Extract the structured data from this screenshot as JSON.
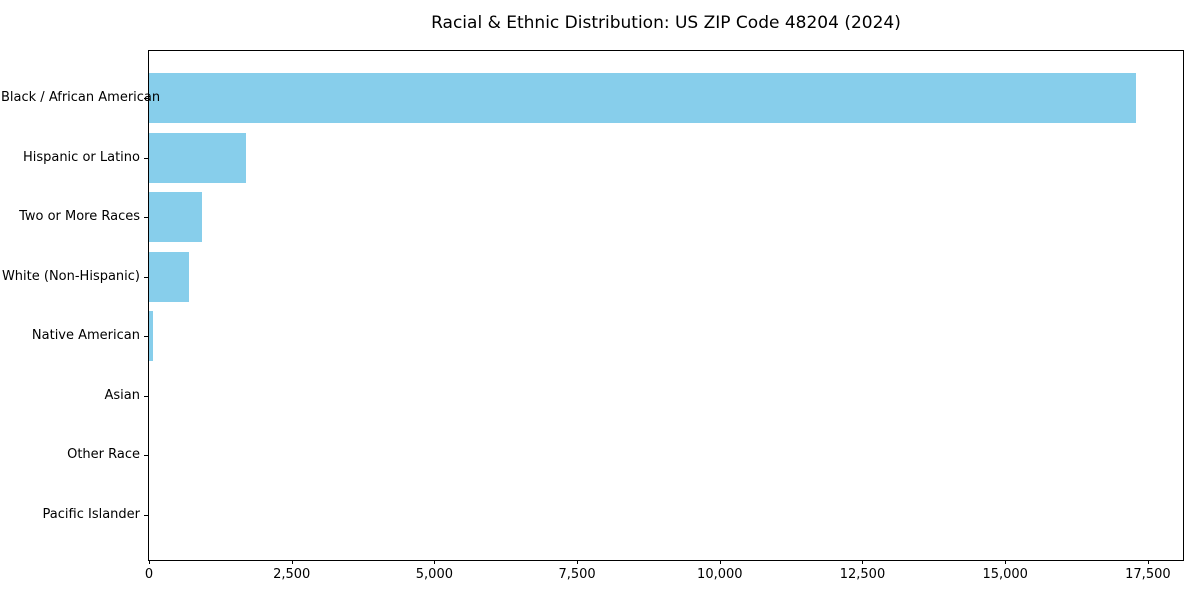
{
  "chart_data": {
    "type": "bar",
    "orientation": "horizontal",
    "title": "Racial & Ethnic Distribution: US ZIP Code 48204 (2024)",
    "xlabel": "",
    "ylabel": "",
    "categories": [
      "Black / African American",
      "Hispanic or Latino",
      "Two or More Races",
      "White (Non-Hispanic)",
      "Native American",
      "Asian",
      "Other Race",
      "Pacific Islander"
    ],
    "values": [
      17290,
      1700,
      930,
      700,
      65,
      0,
      0,
      0
    ],
    "xlim": [
      0,
      18150
    ],
    "xticks": [
      0,
      2500,
      5000,
      7500,
      10000,
      12500,
      15000,
      17500
    ],
    "xtick_labels": [
      "0",
      "2,500",
      "5,000",
      "7,500",
      "10,000",
      "12,500",
      "15,000",
      "17,500"
    ],
    "grid": false,
    "legend": null,
    "bar_color": "#87ceeb",
    "axis_color": "#000000",
    "background_color": "#ffffff"
  }
}
